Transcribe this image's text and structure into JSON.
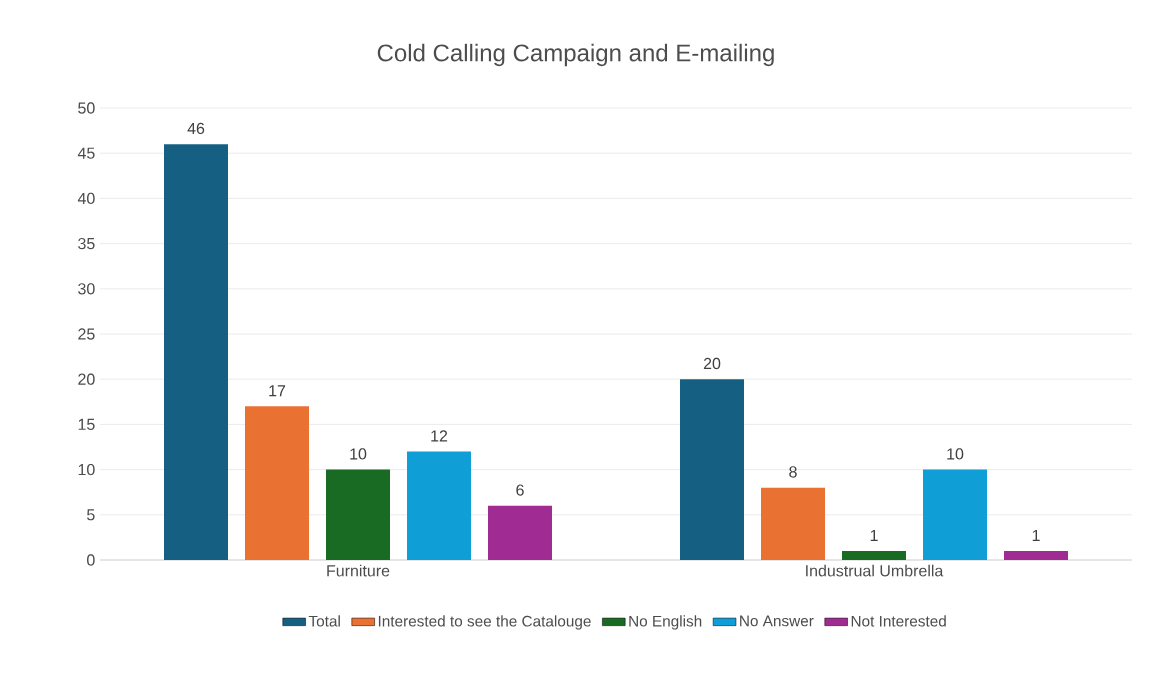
{
  "chart_data": {
    "type": "bar",
    "title": "Cold Calling Campaign and E-mailing",
    "categories": [
      "Furniture",
      "Industrual Umbrella"
    ],
    "series": [
      {
        "name": "Total",
        "color": "#156082",
        "values": [
          46,
          20
        ]
      },
      {
        "name": "Interested to see the Catalouge",
        "color": "#e97132",
        "values": [
          17,
          8
        ]
      },
      {
        "name": "No English",
        "color": "#196b24",
        "values": [
          10,
          1
        ]
      },
      {
        "name": "No Answer",
        "color": "#0f9ed5",
        "values": [
          12,
          10
        ]
      },
      {
        "name": "Not Interested",
        "color": "#a02b93",
        "values": [
          6,
          1
        ]
      }
    ],
    "ylim": [
      0,
      50
    ],
    "yticks": [
      0,
      5,
      10,
      15,
      20,
      25,
      30,
      35,
      40,
      45,
      50
    ],
    "grid": "y",
    "legend": "bottom",
    "data_labels": true
  }
}
